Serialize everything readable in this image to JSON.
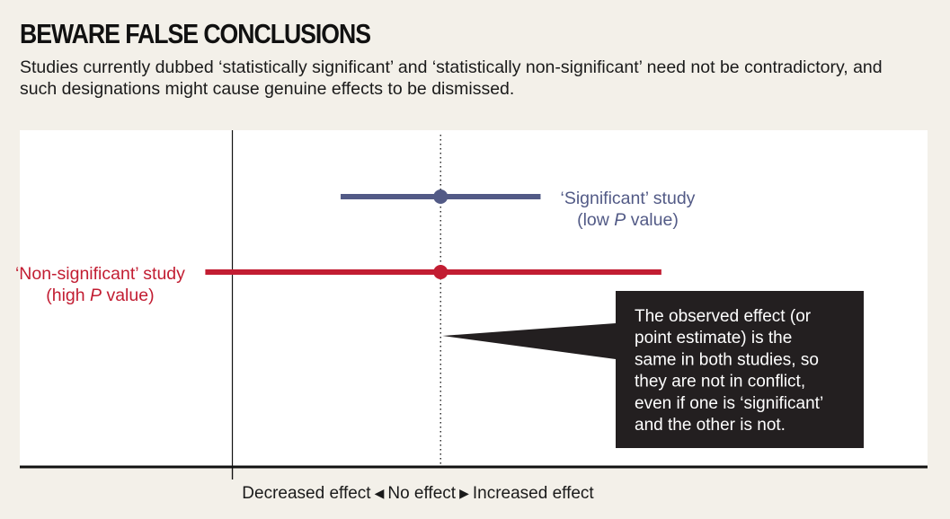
{
  "title": "BEWARE FALSE CONCLUSIONS",
  "subtitle": "Studies currently dubbed ‘statistically significant’ and ‘statistically non-significant’ need not be contradictory, and such designations might cause genuine effects to be dismissed.",
  "colors": {
    "significant": "#525a86",
    "non_significant": "#c21d32",
    "callout_bg": "#231f20",
    "background": "#f3f0e9",
    "plot_bg": "#ffffff"
  },
  "axis": {
    "decreased": "Decreased effect",
    "left_arrow": "◀",
    "no_effect": "No effect",
    "right_arrow": "▶",
    "increased": "Increased effect"
  },
  "callout": {
    "lines": [
      "The observed effect (or",
      "point estimate) is the",
      "same in both studies, so",
      "they are not in conflict,",
      "even if one is ‘significant’",
      "and the other is not."
    ]
  },
  "chart_data": {
    "type": "forest",
    "xlabel": "",
    "ylabel": "",
    "xlim": [
      -0.9,
      3.2
    ],
    "no_effect_x": 0,
    "point_estimate_x": 1,
    "series": [
      {
        "name": "‘Significant’ study",
        "name_line2_pre": "(low ",
        "name_line2_italic": "P",
        "name_line2_post": " value)",
        "estimate": 1.0,
        "ci": [
          0.52,
          1.48
        ],
        "color": "#525a86",
        "label_side": "right"
      },
      {
        "name": "‘Non-significant’ study",
        "name_line2_pre": "(high ",
        "name_line2_italic": "P",
        "name_line2_post": " value)",
        "estimate": 1.0,
        "ci": [
          -0.13,
          2.06
        ],
        "color": "#c21d32",
        "label_side": "left"
      }
    ]
  }
}
